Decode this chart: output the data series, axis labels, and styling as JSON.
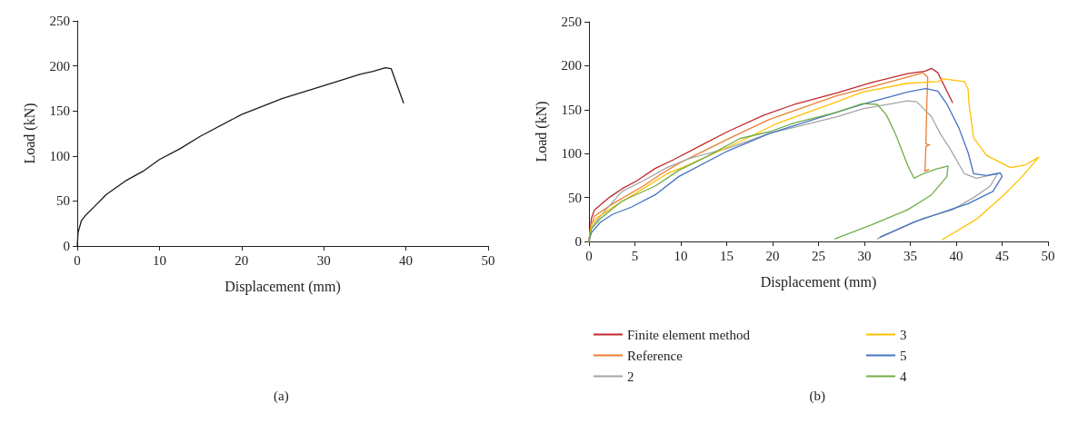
{
  "chart_data": [
    {
      "type": "line",
      "xlabel": "Displacement (mm)",
      "ylabel": "Load (kN)",
      "xlim": [
        0,
        50
      ],
      "xticks": [
        0,
        10,
        20,
        30,
        40,
        50
      ],
      "ylim": [
        0,
        250
      ],
      "yticks": [
        0,
        50,
        100,
        150,
        200,
        250
      ],
      "grid": false,
      "legend": false,
      "marker": "none",
      "line_style": "solid",
      "annotations": [
        "(a)"
      ],
      "series": [
        {
          "color": "#1a1a1a",
          "x": [
            0,
            0.1,
            0.5,
            1,
            2,
            3.5,
            6,
            8,
            10,
            12.5,
            15,
            20,
            25,
            30,
            34.5,
            36,
            37.5,
            38.2,
            39.7
          ],
          "values": [
            0,
            15,
            28,
            34,
            43,
            57,
            73,
            83,
            96,
            108,
            122,
            146,
            164,
            178,
            191,
            194,
            198,
            197,
            159
          ]
        }
      ]
    },
    {
      "type": "line",
      "xlabel": "Displacement (mm)",
      "ylabel": "Load (kN)",
      "xlim": [
        0,
        50
      ],
      "xticks": [
        0,
        5,
        10,
        15,
        20,
        25,
        30,
        35,
        40,
        45,
        50
      ],
      "ylim": [
        0,
        250
      ],
      "yticks": [
        0,
        50,
        100,
        150,
        200,
        250
      ],
      "grid": false,
      "legend": "bottom",
      "marker": "none",
      "line_style": "solid",
      "annotations": [
        "(b)"
      ],
      "series": [
        {
          "name": "Finite element method",
          "color": "#c0272d",
          "x": [
            0,
            0.26,
            0.6,
            2.2,
            3.6,
            5.2,
            7.2,
            9.2,
            12.5,
            15.1,
            19.1,
            22.4,
            27,
            30.8,
            34.7,
            36.7,
            37.3,
            38,
            39.6
          ],
          "values": [
            0,
            26,
            36,
            50,
            60,
            69,
            83,
            93,
            111,
            125,
            144,
            156,
            169,
            181,
            191,
            194,
            197,
            192,
            158
          ]
        },
        {
          "name": "Reference",
          "color": "#ed7d31",
          "x": [
            0,
            0.1,
            0.6,
            2.6,
            5.9,
            7.9,
            9.8,
            13.1,
            15.8,
            19.7,
            27,
            30.8,
            34.7,
            36.4,
            36.9,
            36.8,
            36.7,
            37.1,
            36.7,
            36.6,
            37
          ],
          "values": [
            0,
            12,
            29,
            43,
            63,
            77,
            89,
            106,
            120,
            139,
            166,
            176,
            187,
            192,
            187,
            156,
            111,
            110,
            108,
            80,
            82
          ]
        },
        {
          "name": "2",
          "color": "#a5a5a5",
          "x": [
            0,
            0.26,
            1.25,
            3.6,
            5.9,
            8.5,
            10.8,
            15.1,
            19.7,
            27,
            29.8,
            34.7,
            35.7,
            37.3,
            38.3,
            39.3,
            40.9,
            42.2,
            44.5,
            43.7,
            41.9,
            39.6,
            36.3,
            31.4
          ],
          "values": [
            0,
            15,
            29,
            57,
            69,
            84,
            94,
            106,
            123,
            142,
            151,
            160,
            159,
            142,
            122,
            106,
            77,
            72,
            77,
            63,
            50,
            36,
            26,
            3
          ]
        },
        {
          "name": "3",
          "color": "#ffc000",
          "x": [
            0,
            0.26,
            0.9,
            2.6,
            5.9,
            8.5,
            10.8,
            13.8,
            17.1,
            20.4,
            27,
            29.8,
            34.7,
            38,
            38.6,
            40.9,
            41.3,
            41.4,
            41.9,
            43.3,
            45.9,
            47.5,
            49,
            47.2,
            45.2,
            42.3,
            38.5
          ],
          "values": [
            0,
            19,
            27,
            39,
            60,
            77,
            87,
            101,
            117,
            134,
            159,
            170,
            180,
            182,
            185,
            182,
            173,
            156,
            118,
            98,
            84,
            87,
            96,
            74,
            53,
            26,
            2
          ]
        },
        {
          "name": "5",
          "color": "#4472c4",
          "x": [
            0,
            0.26,
            1.25,
            2.6,
            4.6,
            7.2,
            9.8,
            15.1,
            19.7,
            27,
            29.8,
            34.7,
            36.7,
            38,
            39,
            40.3,
            41.3,
            41.9,
            43.3,
            44.8,
            45,
            44,
            41.3,
            39.3,
            35.4,
            31.7
          ],
          "values": [
            0,
            10,
            22,
            31,
            39,
            53,
            74,
            103,
            123,
            147,
            156,
            170,
            174,
            171,
            156,
            129,
            101,
            77,
            75,
            78,
            74,
            57,
            43,
            36,
            22,
            5
          ]
        },
        {
          "name": "4",
          "color": "#70ad47",
          "x": [
            0,
            0.26,
            1.25,
            3.6,
            7.2,
            9.8,
            13.1,
            16.4,
            19.7,
            22.4,
            27,
            29.8,
            31.4,
            32.4,
            33.4,
            34.7,
            35.4,
            36.4,
            37.7,
            39.1,
            39,
            37.3,
            34.7,
            30.8,
            26.8
          ],
          "values": [
            0,
            14,
            26,
            46,
            63,
            81,
            98,
            117,
            125,
            135,
            147,
            157,
            156,
            144,
            122,
            87,
            72,
            77,
            82,
            86,
            74,
            53,
            36,
            19,
            3
          ]
        }
      ]
    }
  ]
}
